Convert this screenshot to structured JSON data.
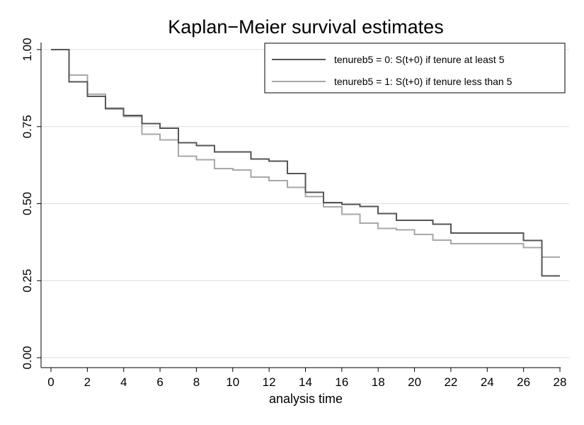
{
  "chart_data": {
    "type": "line",
    "step": true,
    "title": "Kaplan−Meier survival estimates",
    "xlabel": "analysis time",
    "ylabel": "",
    "xlim": [
      0,
      28
    ],
    "ylim": [
      0,
      1
    ],
    "xticks": [
      0,
      2,
      4,
      6,
      8,
      10,
      12,
      14,
      16,
      18,
      20,
      22,
      24,
      26,
      28
    ],
    "xtick_labels": [
      "0",
      "2",
      "4",
      "6",
      "8",
      "10",
      "12",
      "14",
      "16",
      "18",
      "20",
      "22",
      "24",
      "26",
      "28"
    ],
    "yticks": [
      0,
      0.25,
      0.5,
      0.75,
      1
    ],
    "ytick_labels": [
      "0.00",
      "0.25",
      "0.50",
      "0.75",
      "1.00"
    ],
    "grid": true,
    "legend_position": "top-right",
    "series": [
      {
        "name": "tenureb5 = 0: S(t+0) if tenure at least 5",
        "color": "#555555",
        "x": [
          0,
          1,
          2,
          3,
          4,
          5,
          6,
          7,
          8,
          9,
          10,
          11,
          12,
          13,
          14,
          15,
          16,
          17,
          18,
          19,
          20,
          21,
          22,
          23,
          24,
          25,
          26,
          27,
          28
        ],
        "y": [
          1.0,
          0.895,
          0.848,
          0.808,
          0.786,
          0.76,
          0.745,
          0.698,
          0.688,
          0.668,
          0.668,
          0.645,
          0.638,
          0.598,
          0.537,
          0.504,
          0.498,
          0.491,
          0.468,
          0.446,
          0.446,
          0.433,
          0.405,
          0.405,
          0.405,
          0.405,
          0.38,
          0.265,
          0.265
        ]
      },
      {
        "name": "tenureb5 = 1: S(t+0) if tenure less than 5",
        "color": "#a8a8a8",
        "x": [
          0,
          1,
          2,
          3,
          4,
          5,
          6,
          7,
          8,
          9,
          10,
          11,
          12,
          13,
          14,
          15,
          16,
          17,
          18,
          19,
          20,
          21,
          22,
          23,
          24,
          25,
          26,
          27,
          28
        ],
        "y": [
          1.0,
          0.917,
          0.855,
          0.81,
          0.783,
          0.725,
          0.707,
          0.654,
          0.642,
          0.614,
          0.609,
          0.586,
          0.575,
          0.553,
          0.523,
          0.49,
          0.465,
          0.437,
          0.42,
          0.415,
          0.4,
          0.382,
          0.37,
          0.37,
          0.37,
          0.37,
          0.358,
          0.326,
          0.326
        ]
      }
    ]
  }
}
